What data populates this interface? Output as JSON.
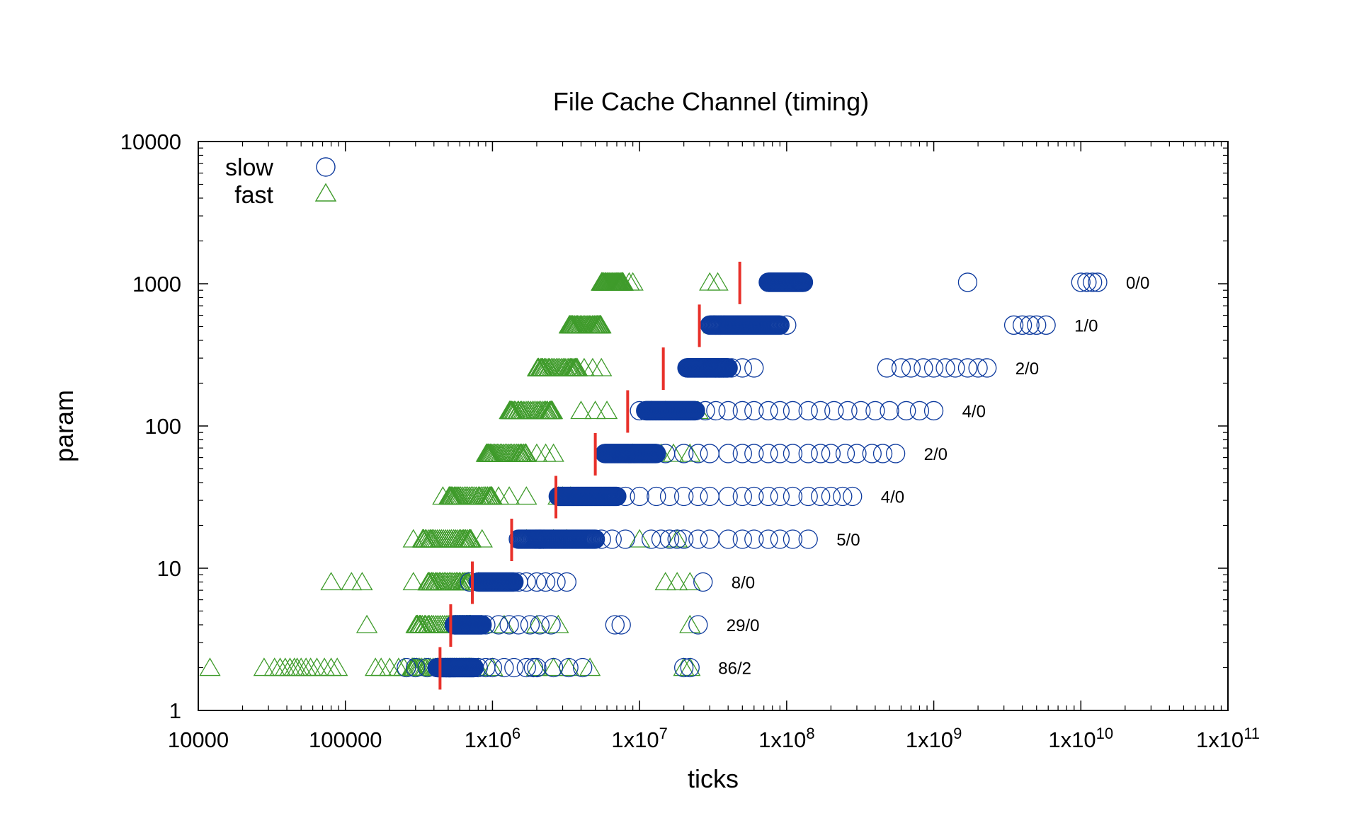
{
  "chart_data": {
    "type": "scatter",
    "title": "File Cache Channel (timing)",
    "xlabel": "ticks",
    "ylabel": "param",
    "xscale": "log",
    "yscale": "log",
    "xlim": [
      10000,
      100000000000
    ],
    "ylim": [
      1,
      10000
    ],
    "grid": false,
    "legend_position": "top-left",
    "x_tick_labels": [
      {
        "base": "10000",
        "exp": ""
      },
      {
        "base": "100000",
        "exp": ""
      },
      {
        "base": "1x10",
        "exp": "6"
      },
      {
        "base": "1x10",
        "exp": "7"
      },
      {
        "base": "1x10",
        "exp": "8"
      },
      {
        "base": "1x10",
        "exp": "9"
      },
      {
        "base": "1x10",
        "exp": "10"
      },
      {
        "base": "1x10",
        "exp": "11"
      }
    ],
    "x_tick_values": [
      10000,
      100000,
      1000000,
      10000000,
      100000000,
      1000000000,
      10000000000,
      100000000000
    ],
    "y_tick_labels": [
      "1",
      "10",
      "100",
      "1000",
      "10000"
    ],
    "y_tick_values": [
      1,
      10,
      100,
      1000,
      10000
    ],
    "series": [
      {
        "name": "slow",
        "marker": "circle",
        "color": "#0d3a9e"
      },
      {
        "name": "fast",
        "marker": "triangle",
        "color": "#3f9b2b"
      }
    ],
    "rows": [
      {
        "param": 2,
        "label": "86/2",
        "threshold": 440000,
        "fast_dense": [
          280000,
          720000
        ],
        "fast_sparse": [
          12000,
          28000,
          33000,
          36000,
          39000,
          42000,
          45000,
          47000,
          50000,
          54000,
          58000,
          64000,
          72000,
          80000,
          88000,
          160000,
          175000,
          200000,
          230000,
          250000,
          800000,
          1000000,
          2000000,
          2600000,
          3300000,
          4600000,
          20000000,
          22000000
        ],
        "slow_dense": [
          420000,
          750000
        ],
        "slow_sparse": [
          260000,
          300000,
          360000,
          800000,
          900000,
          1000000,
          1200000,
          1400000,
          1700000,
          1900000,
          2000000,
          2600000,
          3300000,
          4100000,
          20000000,
          22000000
        ]
      },
      {
        "param": 4,
        "label": "29/0",
        "threshold": 520000,
        "fast_dense": [
          300000,
          720000
        ],
        "fast_sparse": [
          140000,
          850000,
          1200000,
          2000000,
          2800000,
          22000000
        ],
        "slow_dense": [
          550000,
          850000
        ],
        "slow_sparse": [
          900000,
          1100000,
          1300000,
          1500000,
          1800000,
          2100000,
          2500000,
          6800000,
          7500000,
          25000000
        ]
      },
      {
        "param": 8,
        "label": "8/0",
        "threshold": 730000,
        "fast_dense": [
          360000,
          700000
        ],
        "fast_sparse": [
          80000,
          110000,
          130000,
          290000,
          800000,
          15000000,
          18000000,
          22000000
        ],
        "slow_dense": [
          800000,
          1400000
        ],
        "slow_sparse": [
          700000,
          1500000,
          1700000,
          2000000,
          2300000,
          2700000,
          3200000,
          27000000
        ]
      },
      {
        "param": 16,
        "label": "5/0",
        "threshold": 1350000,
        "fast_dense": [
          330000,
          720000
        ],
        "fast_sparse": [
          290000,
          850000,
          1700000,
          2600000,
          3200000,
          10000000,
          18000000
        ],
        "slow_dense": [
          1500000,
          5000000
        ],
        "slow_sparse": [
          5500000,
          6500000,
          8000000,
          12000000,
          14000000,
          16000000,
          18000000,
          20000000,
          25000000,
          30000000,
          40000000,
          50000000,
          60000000,
          75000000,
          90000000,
          110000000,
          140000000
        ]
      },
      {
        "param": 32,
        "label": "4/0",
        "threshold": 2700000,
        "fast_dense": [
          500000,
          1000000
        ],
        "fast_sparse": [
          460000,
          1100000,
          1300000,
          1700000,
          2800000,
          3000000,
          3400000
        ],
        "slow_dense": [
          2800000,
          7000000
        ],
        "slow_sparse": [
          8000000,
          10000000,
          13000000,
          16000000,
          20000000,
          25000000,
          30000000,
          40000000,
          50000000,
          60000000,
          75000000,
          90000000,
          110000000,
          140000000,
          170000000,
          200000000,
          240000000,
          280000000
        ]
      },
      {
        "param": 64,
        "label": "2/0",
        "threshold": 5000000,
        "fast_dense": [
          900000,
          1700000
        ],
        "fast_sparse": [
          2000000,
          2300000,
          2600000,
          9000000,
          14000000,
          17000000,
          22000000
        ],
        "slow_dense": [
          5800000,
          13000000
        ],
        "slow_sparse": [
          15000000,
          20000000,
          25000000,
          30000000,
          40000000,
          50000000,
          60000000,
          75000000,
          90000000,
          110000000,
          140000000,
          170000000,
          200000000,
          250000000,
          300000000,
          380000000,
          450000000,
          550000000
        ]
      },
      {
        "param": 128,
        "label": "4/0",
        "threshold": 8300000,
        "fast_dense": [
          1300000,
          2600000
        ],
        "fast_sparse": [
          4000000,
          5000000,
          6000000,
          12000000,
          15000000,
          25000000
        ],
        "slow_dense": [
          11000000,
          24000000
        ],
        "slow_sparse": [
          10000000,
          28000000,
          33000000,
          40000000,
          50000000,
          60000000,
          75000000,
          90000000,
          110000000,
          140000000,
          170000000,
          210000000,
          260000000,
          320000000,
          400000000,
          500000000,
          650000000,
          800000000,
          1000000000
        ]
      },
      {
        "param": 256,
        "label": "2/0",
        "threshold": 14500000,
        "fast_dense": [
          2000000,
          3800000
        ],
        "fast_sparse": [
          4200000,
          4800000,
          5500000,
          25000000
        ],
        "slow_dense": [
          21000000,
          40000000
        ],
        "slow_sparse": [
          42000000,
          50000000,
          60000000,
          480000000,
          600000000,
          700000000,
          850000000,
          1000000000,
          1200000000,
          1400000000,
          1700000000,
          2000000000,
          2300000000
        ]
      },
      {
        "param": 512,
        "label": "1/0",
        "threshold": 25500000,
        "fast_dense": [
          3300000,
          5500000
        ],
        "fast_sparse": [
          32000000
        ],
        "slow_dense": [
          30000000,
          90000000
        ],
        "slow_sparse": [
          100000000,
          3500000000,
          4000000000,
          4500000000,
          5000000000,
          5800000000
        ]
      },
      {
        "param": 1024,
        "label": "0/0",
        "threshold": 48000000,
        "fast_dense": [
          5500000,
          7800000
        ],
        "fast_sparse": [
          8500000,
          9000000,
          30000000,
          34000000
        ],
        "slow_dense": [
          75000000,
          130000000
        ],
        "slow_sparse": [
          1700000000,
          10000000000,
          11000000000,
          12000000000,
          13000000000
        ]
      }
    ]
  }
}
